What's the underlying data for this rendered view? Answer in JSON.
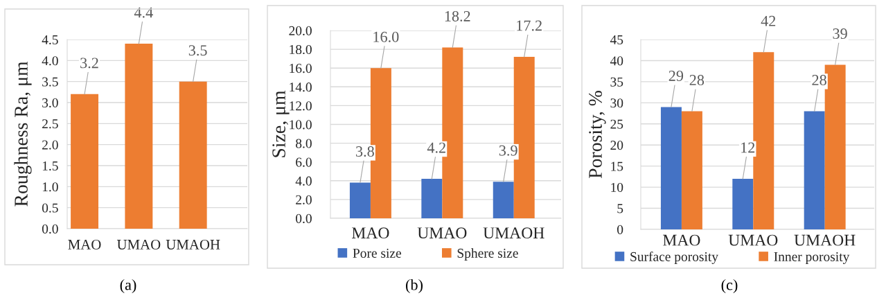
{
  "chart_data": [
    {
      "type": "bar",
      "title": "(a)",
      "ylabel": "Roughness Ra, μm",
      "categories": [
        "MAO",
        "UMAO",
        "UMAOH"
      ],
      "series": [
        {
          "color": "#ed7d31",
          "values": [
            3.2,
            4.4,
            3.5
          ],
          "value_labels": [
            "3.2",
            "4.4",
            "3.5"
          ]
        }
      ],
      "ylim": [
        0,
        4.5
      ],
      "yticks": [
        {
          "value": 0,
          "label": "0.0"
        },
        {
          "value": 0.5,
          "label": "0.5"
        },
        {
          "value": 1,
          "label": "1.0"
        },
        {
          "value": 1.5,
          "label": "1.5"
        },
        {
          "value": 2,
          "label": "2.0"
        },
        {
          "value": 2.5,
          "label": "2.5"
        },
        {
          "value": 3,
          "label": "3.0"
        },
        {
          "value": 3.5,
          "label": "3.5"
        },
        {
          "value": 4,
          "label": "4.0"
        },
        {
          "value": 4.5,
          "label": "4.5"
        }
      ],
      "grid": "y"
    },
    {
      "type": "bar",
      "title": "(b)",
      "ylabel": "Size, μm",
      "categories": [
        "MAO",
        "UMAO",
        "UMAOH"
      ],
      "series": [
        {
          "name": "Pore size",
          "color": "#4472c4",
          "values": [
            3.8,
            4.2,
            3.9
          ],
          "value_labels": [
            "3.8",
            "4.2",
            "3.9"
          ]
        },
        {
          "name": "Sphere size",
          "color": "#ed7d31",
          "values": [
            16.0,
            18.2,
            17.2
          ],
          "value_labels": [
            "16.0",
            "18.2",
            "17.2"
          ]
        }
      ],
      "ylim": [
        0,
        20
      ],
      "yticks": [
        {
          "value": 0,
          "label": "0.0"
        },
        {
          "value": 2,
          "label": "2.0"
        },
        {
          "value": 4,
          "label": "4.0"
        },
        {
          "value": 6,
          "label": "6.0"
        },
        {
          "value": 8,
          "label": "8.0"
        },
        {
          "value": 10,
          "label": "10.0"
        },
        {
          "value": 12,
          "label": "12.0"
        },
        {
          "value": 14,
          "label": "14.0"
        },
        {
          "value": 16,
          "label": "16.0"
        },
        {
          "value": 18,
          "label": "18.0"
        },
        {
          "value": 20,
          "label": "20.0"
        }
      ],
      "grid": "y",
      "legend": "bottom"
    },
    {
      "type": "bar",
      "title": "(c)",
      "ylabel": "Porosity, %",
      "categories": [
        "MAO",
        "UMAO",
        "UMAOH"
      ],
      "series": [
        {
          "name": "Surface porosity",
          "color": "#4472c4",
          "values": [
            29,
            12,
            28
          ],
          "value_labels": [
            "29",
            "12",
            "28"
          ]
        },
        {
          "name": "Inner porosity",
          "color": "#ed7d31",
          "values": [
            28,
            42,
            39
          ],
          "value_labels": [
            "28",
            "42",
            "39"
          ]
        }
      ],
      "ylim": [
        0,
        45
      ],
      "yticks": [
        0,
        5,
        10,
        15,
        20,
        25,
        30,
        35,
        40,
        45
      ],
      "grid": "y",
      "legend": "bottom"
    }
  ]
}
